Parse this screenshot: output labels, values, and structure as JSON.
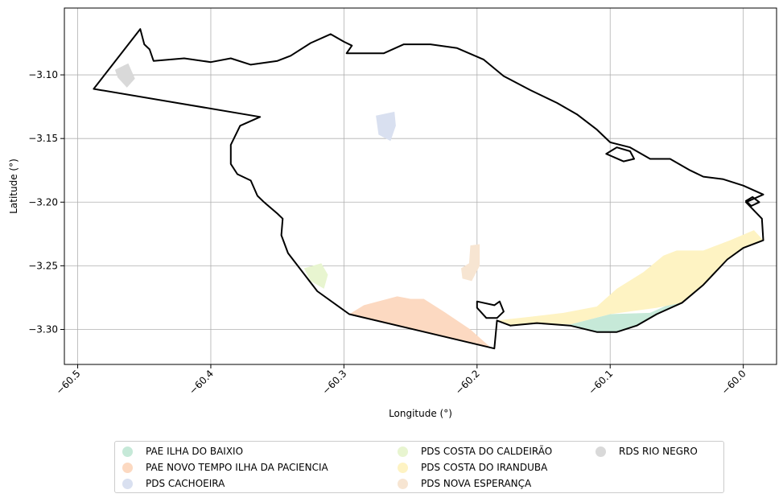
{
  "chart_data": {
    "type": "map",
    "xlabel": "Longitude (°)",
    "ylabel": "Latitude (°)",
    "xlim": [
      -60.51,
      -59.975
    ],
    "ylim": [
      -3.3275,
      -3.0475
    ],
    "x_ticks": [
      -60.5,
      -60.4,
      -60.3,
      -60.2,
      -60.1,
      -60.0
    ],
    "x_tick_labels": [
      "−60.5",
      "−60.4",
      "−60.3",
      "−60.2",
      "−60.1",
      "−60.0"
    ],
    "y_ticks": [
      -3.3,
      -3.25,
      -3.2,
      -3.15,
      -3.1
    ],
    "y_tick_labels": [
      "−3.30",
      "−3.25",
      "−3.20",
      "−3.15",
      "−3.10"
    ],
    "grid": true,
    "legend_position": "bottom-center",
    "boundary": [
      [
        -60.488,
        -3.111
      ],
      [
        -60.453,
        -3.064
      ],
      [
        -60.45,
        -3.076
      ],
      [
        -60.446,
        -3.08
      ],
      [
        -60.443,
        -3.089
      ],
      [
        -60.42,
        -3.087
      ],
      [
        -60.4,
        -3.09
      ],
      [
        -60.385,
        -3.087
      ],
      [
        -60.37,
        -3.092
      ],
      [
        -60.35,
        -3.089
      ],
      [
        -60.34,
        -3.085
      ],
      [
        -60.325,
        -3.075
      ],
      [
        -60.31,
        -3.068
      ],
      [
        -60.3,
        -3.074
      ],
      [
        -60.294,
        -3.077
      ],
      [
        -60.298,
        -3.083
      ],
      [
        -60.286,
        -3.083
      ],
      [
        -60.27,
        -3.083
      ],
      [
        -60.255,
        -3.076
      ],
      [
        -60.235,
        -3.076
      ],
      [
        -60.215,
        -3.079
      ],
      [
        -60.195,
        -3.088
      ],
      [
        -60.18,
        -3.101
      ],
      [
        -60.16,
        -3.112
      ],
      [
        -60.14,
        -3.122
      ],
      [
        -60.125,
        -3.131
      ],
      [
        -60.11,
        -3.143
      ],
      [
        -60.1,
        -3.153
      ],
      [
        -60.085,
        -3.157
      ],
      [
        -60.08,
        -3.16
      ],
      [
        -60.07,
        -3.166
      ],
      [
        -60.055,
        -3.166
      ],
      [
        -60.04,
        -3.175
      ],
      [
        -60.03,
        -3.18
      ],
      [
        -60.015,
        -3.182
      ],
      [
        -60.0,
        -3.187
      ],
      [
        -59.985,
        -3.194
      ],
      [
        -59.998,
        -3.2
      ],
      [
        -59.986,
        -3.213
      ],
      [
        -59.985,
        -3.23
      ],
      [
        -60.0,
        -3.236
      ],
      [
        -60.012,
        -3.245
      ],
      [
        -60.03,
        -3.265
      ],
      [
        -60.046,
        -3.279
      ],
      [
        -60.065,
        -3.288
      ],
      [
        -60.08,
        -3.297
      ],
      [
        -60.095,
        -3.302
      ],
      [
        -60.11,
        -3.302
      ],
      [
        -60.13,
        -3.297
      ],
      [
        -60.155,
        -3.295
      ],
      [
        -60.175,
        -3.297
      ],
      [
        -60.185,
        -3.293
      ],
      [
        -60.187,
        -3.315
      ],
      [
        -60.296,
        -3.288
      ],
      [
        -60.32,
        -3.27
      ],
      [
        -60.342,
        -3.24
      ],
      [
        -60.347,
        -3.226
      ],
      [
        -60.346,
        -3.213
      ],
      [
        -60.35,
        -3.209
      ],
      [
        -60.36,
        -3.2
      ],
      [
        -60.365,
        -3.195
      ],
      [
        -60.37,
        -3.183
      ],
      [
        -60.38,
        -3.178
      ],
      [
        -60.385,
        -3.17
      ],
      [
        -60.385,
        -3.155
      ],
      [
        -60.378,
        -3.14
      ],
      [
        -60.363,
        -3.133
      ],
      [
        -60.488,
        -3.111
      ]
    ],
    "islands": [
      [
        [
          -60.2,
          -3.278
        ],
        [
          -60.187,
          -3.281
        ],
        [
          -60.183,
          -3.278
        ],
        [
          -60.18,
          -3.286
        ],
        [
          -60.185,
          -3.291
        ],
        [
          -60.193,
          -3.291
        ],
        [
          -60.2,
          -3.283
        ],
        [
          -60.2,
          -3.278
        ]
      ],
      [
        [
          -60.103,
          -3.162
        ],
        [
          -60.095,
          -3.157
        ],
        [
          -60.085,
          -3.16
        ],
        [
          -60.082,
          -3.166
        ],
        [
          -60.09,
          -3.168
        ],
        [
          -60.103,
          -3.162
        ]
      ],
      [
        [
          -59.998,
          -3.199
        ],
        [
          -59.993,
          -3.196
        ],
        [
          -59.988,
          -3.2
        ],
        [
          -59.994,
          -3.203
        ],
        [
          -59.998,
          -3.199
        ]
      ]
    ],
    "series": [
      {
        "name": "PAE ILHA DO BAIXIO",
        "color": "#c6e9d8",
        "polygon": [
          [
            -60.13,
            -3.296
          ],
          [
            -60.1,
            -3.288
          ],
          [
            -60.07,
            -3.287
          ],
          [
            -60.055,
            -3.28
          ],
          [
            -60.046,
            -3.279
          ],
          [
            -60.065,
            -3.288
          ],
          [
            -60.08,
            -3.297
          ],
          [
            -60.095,
            -3.302
          ],
          [
            -60.11,
            -3.302
          ],
          [
            -60.13,
            -3.297
          ]
        ]
      },
      {
        "name": "PAE NOVO TEMPO ILHA DA PACIENCIA",
        "color": "#fcd9c1",
        "polygon": [
          [
            -60.296,
            -3.288
          ],
          [
            -60.285,
            -3.281
          ],
          [
            -60.26,
            -3.274
          ],
          [
            -60.25,
            -3.276
          ],
          [
            -60.24,
            -3.276
          ],
          [
            -60.225,
            -3.286
          ],
          [
            -60.205,
            -3.3
          ],
          [
            -60.19,
            -3.314
          ],
          [
            -60.187,
            -3.315
          ]
        ]
      },
      {
        "name": "PDS CACHOEIRA",
        "color": "#d9e0f0",
        "polygon": [
          [
            -60.276,
            -3.132
          ],
          [
            -60.262,
            -3.129
          ],
          [
            -60.261,
            -3.14
          ],
          [
            -60.265,
            -3.152
          ],
          [
            -60.274,
            -3.147
          ]
        ]
      },
      {
        "name": "PDS COSTA DO CALDEIRÃO",
        "color": "#e8f5d0",
        "polygon": [
          [
            -60.33,
            -3.252
          ],
          [
            -60.317,
            -3.248
          ],
          [
            -60.312,
            -3.257
          ],
          [
            -60.315,
            -3.268
          ],
          [
            -60.325,
            -3.262
          ]
        ]
      },
      {
        "name": "PDS COSTA DO IRANDUBA",
        "color": "#fef3c3",
        "polygon": [
          [
            -60.185,
            -3.293
          ],
          [
            -60.16,
            -3.29
          ],
          [
            -60.135,
            -3.287
          ],
          [
            -60.11,
            -3.282
          ],
          [
            -60.095,
            -3.268
          ],
          [
            -60.075,
            -3.255
          ],
          [
            -60.06,
            -3.242
          ],
          [
            -60.05,
            -3.238
          ],
          [
            -60.03,
            -3.238
          ],
          [
            -60.01,
            -3.23
          ],
          [
            -59.992,
            -3.222
          ],
          [
            -59.985,
            -3.23
          ],
          [
            -60.0,
            -3.236
          ],
          [
            -60.012,
            -3.245
          ],
          [
            -60.03,
            -3.265
          ],
          [
            -60.046,
            -3.279
          ],
          [
            -60.065,
            -3.283
          ],
          [
            -60.1,
            -3.288
          ],
          [
            -60.13,
            -3.296
          ],
          [
            -60.155,
            -3.295
          ],
          [
            -60.175,
            -3.297
          ]
        ]
      },
      {
        "name": "PDS NOVA ESPERANÇA",
        "color": "#f7e5d2",
        "polygon": [
          [
            -60.205,
            -3.234
          ],
          [
            -60.198,
            -3.233
          ],
          [
            -60.198,
            -3.25
          ],
          [
            -60.204,
            -3.262
          ],
          [
            -60.211,
            -3.26
          ],
          [
            -60.212,
            -3.252
          ],
          [
            -60.206,
            -3.248
          ]
        ]
      },
      {
        "name": "RDS RIO NEGRO",
        "color": "#d9d9d9",
        "polygon": [
          [
            -60.472,
            -3.096
          ],
          [
            -60.462,
            -3.091
          ],
          [
            -60.457,
            -3.103
          ],
          [
            -60.463,
            -3.11
          ],
          [
            -60.47,
            -3.102
          ]
        ]
      }
    ]
  }
}
